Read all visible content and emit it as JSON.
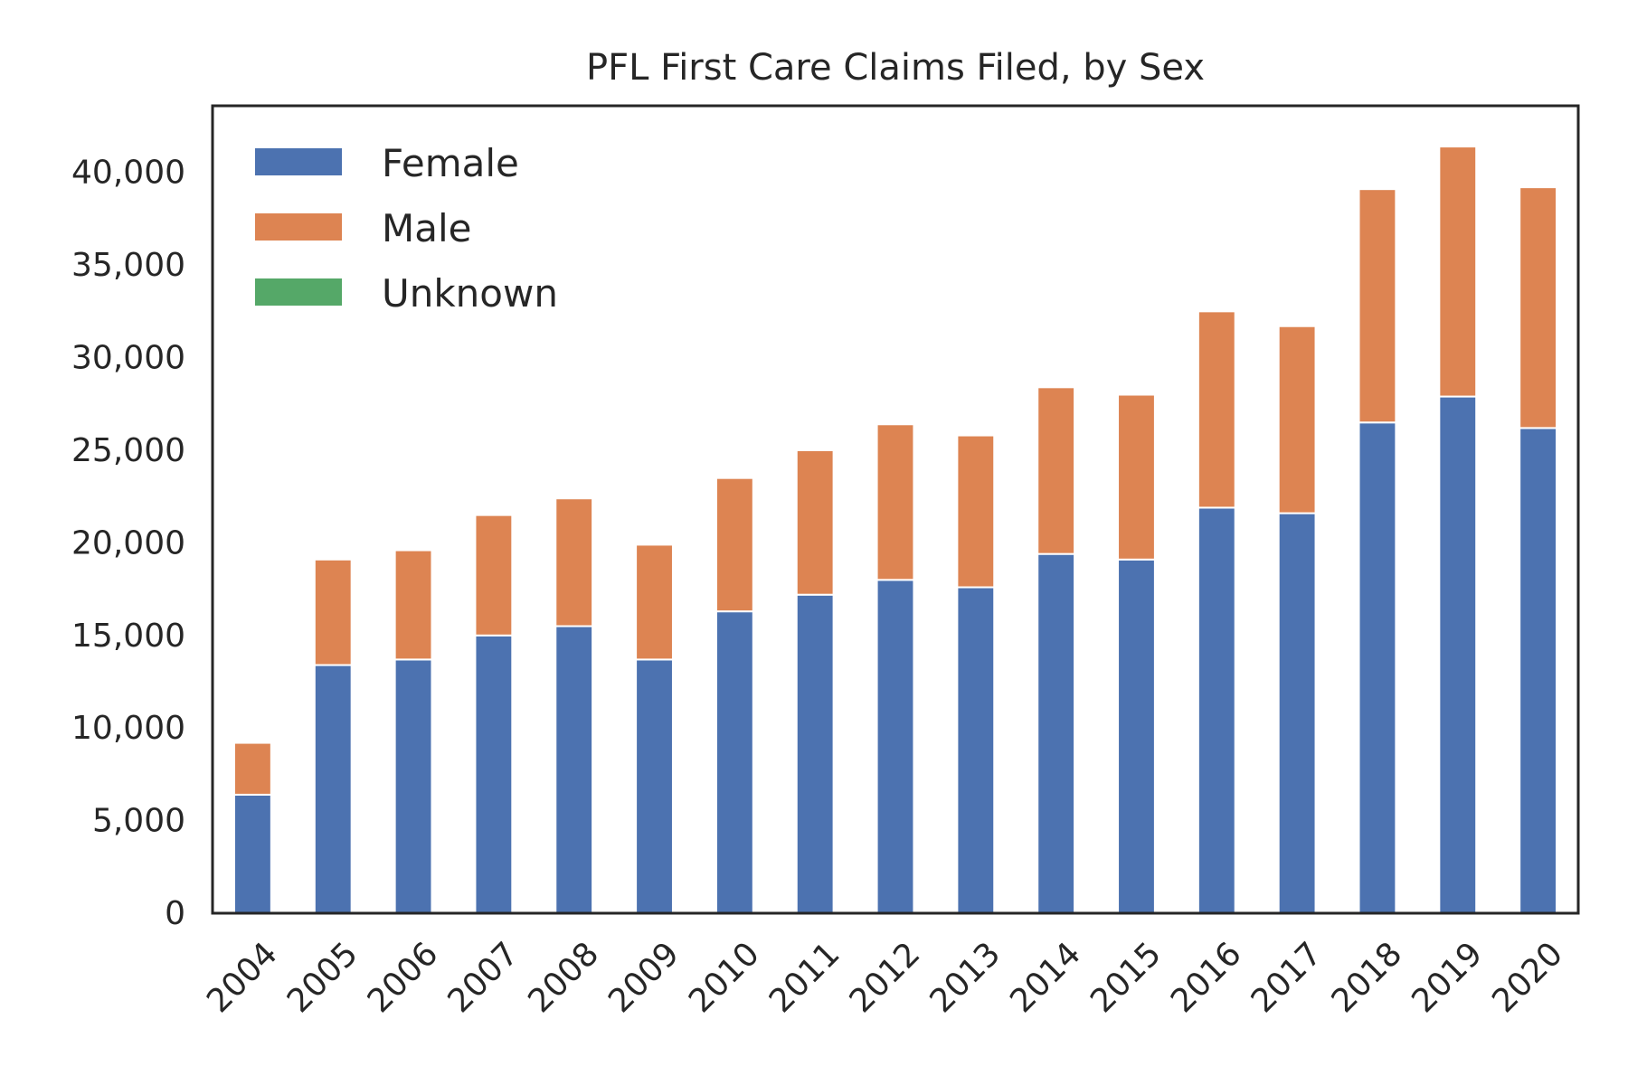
{
  "chart_data": {
    "type": "bar",
    "stacked": true,
    "title": "PFL First Care Claims Filed, by Sex",
    "xlabel": "",
    "ylabel": "",
    "categories": [
      "2004",
      "2005",
      "2006",
      "2007",
      "2008",
      "2009",
      "2010",
      "2011",
      "2012",
      "2013",
      "2014",
      "2015",
      "2016",
      "2017",
      "2018",
      "2019",
      "2020"
    ],
    "series": [
      {
        "name": "Female",
        "color": "#4c72b0",
        "values": [
          6400,
          13400,
          13700,
          15000,
          15500,
          13700,
          16300,
          17200,
          18000,
          17600,
          19400,
          19100,
          21900,
          21600,
          26500,
          27900,
          26200
        ]
      },
      {
        "name": "Male",
        "color": "#dd8452",
        "values": [
          2800,
          5700,
          5900,
          6500,
          6900,
          6200,
          7200,
          7800,
          8400,
          8200,
          9000,
          8900,
          10600,
          10100,
          12600,
          13500,
          13000
        ]
      },
      {
        "name": "Unknown",
        "color": "#55a868",
        "values": [
          0,
          0,
          0,
          0,
          0,
          0,
          0,
          0,
          0,
          0,
          0,
          0,
          0,
          0,
          0,
          0,
          0
        ]
      }
    ],
    "yticks": [
      0,
      5000,
      10000,
      15000,
      20000,
      25000,
      30000,
      35000,
      40000
    ],
    "ytick_labels": [
      "0",
      "5,000",
      "10,000",
      "15,000",
      "20,000",
      "25,000",
      "30,000",
      "35,000",
      "40,000"
    ],
    "ylim": [
      0,
      43600
    ],
    "grid": false,
    "legend_position": "top-left"
  }
}
